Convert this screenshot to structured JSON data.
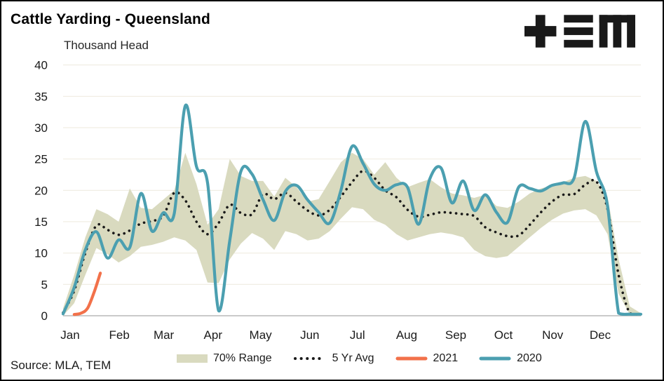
{
  "header": {
    "title": "Cattle Yarding - Queensland",
    "subtitle": "Thousand Head",
    "logo": "tem-logo"
  },
  "footer": {
    "source": "Source: MLA, TEM"
  },
  "chart_data": {
    "type": "line",
    "title": "Cattle Yarding - Queensland",
    "ylabel": "Thousand Head",
    "grid": true,
    "legend_position": "bottom",
    "colors": {
      "band": "#d9dabf",
      "avg": "#1a1a1a",
      "y2021": "#f2714a",
      "y2020": "#4b9fb0",
      "gridline": "#efece1",
      "zero_axis": "#b9b9b9",
      "text": "#1a1a1a"
    },
    "y_axis": {
      "min": 0,
      "max": 40,
      "step": 5,
      "tick_labels": [
        "0",
        "5",
        "10",
        "15",
        "20",
        "25",
        "30",
        "35",
        "40"
      ]
    },
    "x_axis": {
      "weeks": 52,
      "tick_labels": [
        "Jan",
        "Feb",
        "Mar",
        "Apr",
        "May",
        "Jun",
        "Jul",
        "Aug",
        "Sep",
        "Oct",
        "Nov",
        "Dec"
      ],
      "month_start_weeks": [
        0,
        4.43,
        8.43,
        12.86,
        17.14,
        21.57,
        25.86,
        30.29,
        34.71,
        39,
        43.43,
        47.71
      ]
    },
    "series": [
      {
        "name": "70% Range",
        "type": "band",
        "color": "#d9dabf",
        "upper": [
          1.2,
          6.5,
          12.5,
          17,
          16.2,
          15,
          20.3,
          17.2,
          17,
          18.5,
          20,
          26,
          21,
          14.5,
          17,
          25,
          22.3,
          21.5,
          21.5,
          19,
          22,
          20.5,
          18.2,
          18.6,
          21.5,
          24.5,
          26,
          25,
          22.5,
          24.5,
          22,
          20.5,
          21.2,
          21.8,
          20.5,
          19.5,
          19.2,
          18.8,
          19.3,
          17.5,
          17.2,
          18.2,
          19.5,
          20.3,
          20.8,
          21.3,
          22,
          22.3,
          21.5,
          19,
          9,
          1.5,
          0.4
        ],
        "lower": [
          0,
          2,
          6.5,
          10.8,
          9.8,
          8.5,
          9.5,
          11,
          11.3,
          11.8,
          12.5,
          12,
          10.5,
          5.3,
          5.2,
          9,
          11.5,
          13.2,
          12.3,
          10.5,
          13.5,
          13,
          12,
          12.3,
          13.5,
          15.5,
          17.3,
          17,
          15.3,
          14.5,
          13,
          12,
          12.5,
          13,
          13.3,
          13,
          12.5,
          10.5,
          9.5,
          9.2,
          9.5,
          11,
          12.5,
          14,
          15.3,
          16.3,
          16.8,
          17,
          16,
          13,
          3.5,
          0.2,
          0.15
        ]
      },
      {
        "name": "5 Yr Avg",
        "type": "dotted-line",
        "color": "#1a1a1a",
        "values": [
          0.5,
          4,
          10,
          14.4,
          13.7,
          12.9,
          13.6,
          14.7,
          15.1,
          15.9,
          19.6,
          18.4,
          15,
          13,
          14.8,
          17.7,
          16.4,
          16.2,
          19.4,
          18.6,
          19.6,
          18.2,
          16.8,
          16,
          16.9,
          19,
          21.3,
          23.1,
          22,
          20,
          18.9,
          16.9,
          15.8,
          16.1,
          16.5,
          16.4,
          16.2,
          15.9,
          14.1,
          13.3,
          12.7,
          12.8,
          14.5,
          16.5,
          18.2,
          19.3,
          19.4,
          20.9,
          21.4,
          17,
          6.5,
          0.4,
          0.25
        ]
      },
      {
        "name": "2021",
        "type": "line",
        "color": "#f2714a",
        "points": [
          [
            1,
            0.2
          ],
          [
            1.6,
            0.4
          ],
          [
            2.2,
            1.2
          ],
          [
            2.8,
            3.8
          ],
          [
            3.35,
            6.8
          ]
        ]
      },
      {
        "name": "2020",
        "type": "line",
        "color": "#4b9fb0",
        "values": [
          0.3,
          4.5,
          10.5,
          13.4,
          9.2,
          12.1,
          10.9,
          19.5,
          13.5,
          16.4,
          16.3,
          33.5,
          23.8,
          21.2,
          0.8,
          12,
          23,
          22.6,
          18.5,
          15.2,
          19.8,
          20.8,
          18.5,
          16.5,
          14.8,
          20,
          27,
          24.3,
          21,
          20,
          20.9,
          20.5,
          14.6,
          21.8,
          23.6,
          18,
          21.5,
          16.8,
          19.3,
          16.5,
          14.9,
          20.5,
          20.3,
          19.9,
          20.8,
          21.2,
          22,
          31,
          23,
          17.5,
          0.4,
          0.25,
          0.25
        ]
      }
    ]
  }
}
